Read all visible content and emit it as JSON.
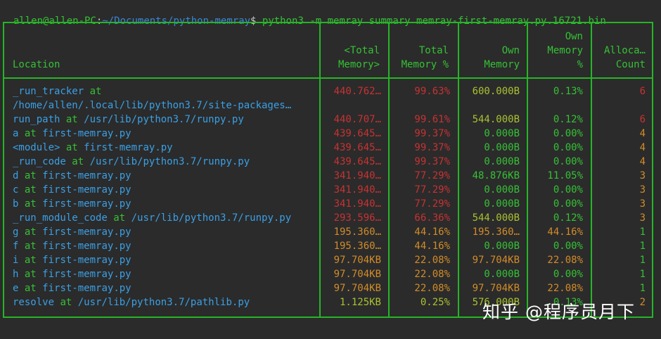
{
  "terminal": {
    "prompt_user": "allen@allen-PC",
    "prompt_sep": ":",
    "prompt_path": "~/Documents/python-memray",
    "prompt_symbol": "$",
    "command": " python3 -m memray summary memray-first-memray.py.16721.bin"
  },
  "headers": {
    "location": "Location",
    "total_memory": [
      "<Total",
      "Memory>"
    ],
    "total_memory_pct": [
      "Total",
      "Memory %"
    ],
    "own_memory": [
      "Own",
      "Memory"
    ],
    "own_memory_pct": [
      "Own",
      "Memory",
      "%"
    ],
    "alloc_count": [
      "Alloca…",
      "Count"
    ]
  },
  "colors": {
    "border": "#26b526",
    "green": "#35c135",
    "blue": "#3aa0e6",
    "red": "#c83232",
    "orange": "#d28c28",
    "yellow_green": "#a8c230"
  },
  "rows": [
    {
      "name": "_run_tracker",
      "at": "at",
      "file": "",
      "total": "440.762…",
      "pct": "99.63%",
      "own": "600.000B",
      "ownpct": "0.13%",
      "count": "6",
      "total_color": "#c83232",
      "pct_color": "#c83232",
      "own_color": "#a8c230",
      "ownpct_color": "#35c135",
      "count_color": "#c83232"
    },
    {
      "name": "/home/allen/.local/lib/python3.7/site-packages…",
      "at": "",
      "file": "",
      "total": "",
      "pct": "",
      "own": "",
      "ownpct": "",
      "count": ""
    },
    {
      "name": "run_path",
      "at": "at",
      "file": "/usr/lib/python3.7/runpy.py",
      "total": "440.707…",
      "pct": "99.61%",
      "own": "544.000B",
      "ownpct": "0.12%",
      "count": "6",
      "total_color": "#c83232",
      "pct_color": "#c83232",
      "own_color": "#a8c230",
      "ownpct_color": "#35c135",
      "count_color": "#c83232"
    },
    {
      "name": "a",
      "at": "at",
      "file": "first-memray.py",
      "total": "439.645…",
      "pct": "99.37%",
      "own": "0.000B",
      "ownpct": "0.00%",
      "count": "4",
      "total_color": "#c83232",
      "pct_color": "#c83232",
      "own_color": "#35c135",
      "ownpct_color": "#35c135",
      "count_color": "#d28c28"
    },
    {
      "name": "<module>",
      "at": "at",
      "file": "first-memray.py",
      "total": "439.645…",
      "pct": "99.37%",
      "own": "0.000B",
      "ownpct": "0.00%",
      "count": "4",
      "total_color": "#c83232",
      "pct_color": "#c83232",
      "own_color": "#35c135",
      "ownpct_color": "#35c135",
      "count_color": "#d28c28"
    },
    {
      "name": "_run_code",
      "at": "at",
      "file": "/usr/lib/python3.7/runpy.py",
      "total": "439.645…",
      "pct": "99.37%",
      "own": "0.000B",
      "ownpct": "0.00%",
      "count": "4",
      "total_color": "#c83232",
      "pct_color": "#c83232",
      "own_color": "#35c135",
      "ownpct_color": "#35c135",
      "count_color": "#d28c28"
    },
    {
      "name": "d",
      "at": "at",
      "file": "first-memray.py",
      "total": "341.940…",
      "pct": "77.29%",
      "own": "48.876KB",
      "ownpct": "11.05%",
      "count": "3",
      "total_color": "#c83232",
      "pct_color": "#c83232",
      "own_color": "#35c135",
      "ownpct_color": "#35c135",
      "count_color": "#d28c28"
    },
    {
      "name": "c",
      "at": "at",
      "file": "first-memray.py",
      "total": "341.940…",
      "pct": "77.29%",
      "own": "0.000B",
      "ownpct": "0.00%",
      "count": "3",
      "total_color": "#c83232",
      "pct_color": "#c83232",
      "own_color": "#35c135",
      "ownpct_color": "#35c135",
      "count_color": "#d28c28"
    },
    {
      "name": "b",
      "at": "at",
      "file": "first-memray.py",
      "total": "341.940…",
      "pct": "77.29%",
      "own": "0.000B",
      "ownpct": "0.00%",
      "count": "3",
      "total_color": "#c83232",
      "pct_color": "#c83232",
      "own_color": "#35c135",
      "ownpct_color": "#35c135",
      "count_color": "#d28c28"
    },
    {
      "name": "_run_module_code",
      "at": "at",
      "file": "/usr/lib/python3.7/runpy.py",
      "total": "293.596…",
      "pct": "66.36%",
      "own": "544.000B",
      "ownpct": "0.12%",
      "count": "3",
      "total_color": "#c83232",
      "pct_color": "#c83232",
      "own_color": "#a8c230",
      "ownpct_color": "#35c135",
      "count_color": "#d28c28"
    },
    {
      "name": "g",
      "at": "at",
      "file": "first-memray.py",
      "total": "195.360…",
      "pct": "44.16%",
      "own": "195.360…",
      "ownpct": "44.16%",
      "count": "1",
      "total_color": "#d28c28",
      "pct_color": "#d28c28",
      "own_color": "#d28c28",
      "ownpct_color": "#d28c28",
      "count_color": "#35c135"
    },
    {
      "name": "f",
      "at": "at",
      "file": "first-memray.py",
      "total": "195.360…",
      "pct": "44.16%",
      "own": "0.000B",
      "ownpct": "0.00%",
      "count": "1",
      "total_color": "#d28c28",
      "pct_color": "#d28c28",
      "own_color": "#35c135",
      "ownpct_color": "#35c135",
      "count_color": "#35c135"
    },
    {
      "name": "i",
      "at": "at",
      "file": "first-memray.py",
      "total": "97.704KB",
      "pct": "22.08%",
      "own": "97.704KB",
      "ownpct": "22.08%",
      "count": "1",
      "total_color": "#d28c28",
      "pct_color": "#d28c28",
      "own_color": "#d28c28",
      "ownpct_color": "#d28c28",
      "count_color": "#35c135"
    },
    {
      "name": "h",
      "at": "at",
      "file": "first-memray.py",
      "total": "97.704KB",
      "pct": "22.08%",
      "own": "0.000B",
      "ownpct": "0.00%",
      "count": "1",
      "total_color": "#d28c28",
      "pct_color": "#d28c28",
      "own_color": "#35c135",
      "ownpct_color": "#35c135",
      "count_color": "#35c135"
    },
    {
      "name": "e",
      "at": "at",
      "file": "first-memray.py",
      "total": "97.704KB",
      "pct": "22.08%",
      "own": "97.704KB",
      "ownpct": "22.08%",
      "count": "1",
      "total_color": "#d28c28",
      "pct_color": "#d28c28",
      "own_color": "#d28c28",
      "ownpct_color": "#d28c28",
      "count_color": "#35c135"
    },
    {
      "name": "resolve",
      "at": "at",
      "file": "/usr/lib/python3.7/pathlib.py",
      "total": "1.125KB",
      "pct": "0.25%",
      "own": "576.000B",
      "ownpct": "0.13%",
      "count": "2",
      "total_color": "#a8c230",
      "pct_color": "#a8c230",
      "own_color": "#a8c230",
      "ownpct_color": "#35c135",
      "count_color": "#d28c28"
    }
  ],
  "watermark": "知乎 @程序员月下"
}
